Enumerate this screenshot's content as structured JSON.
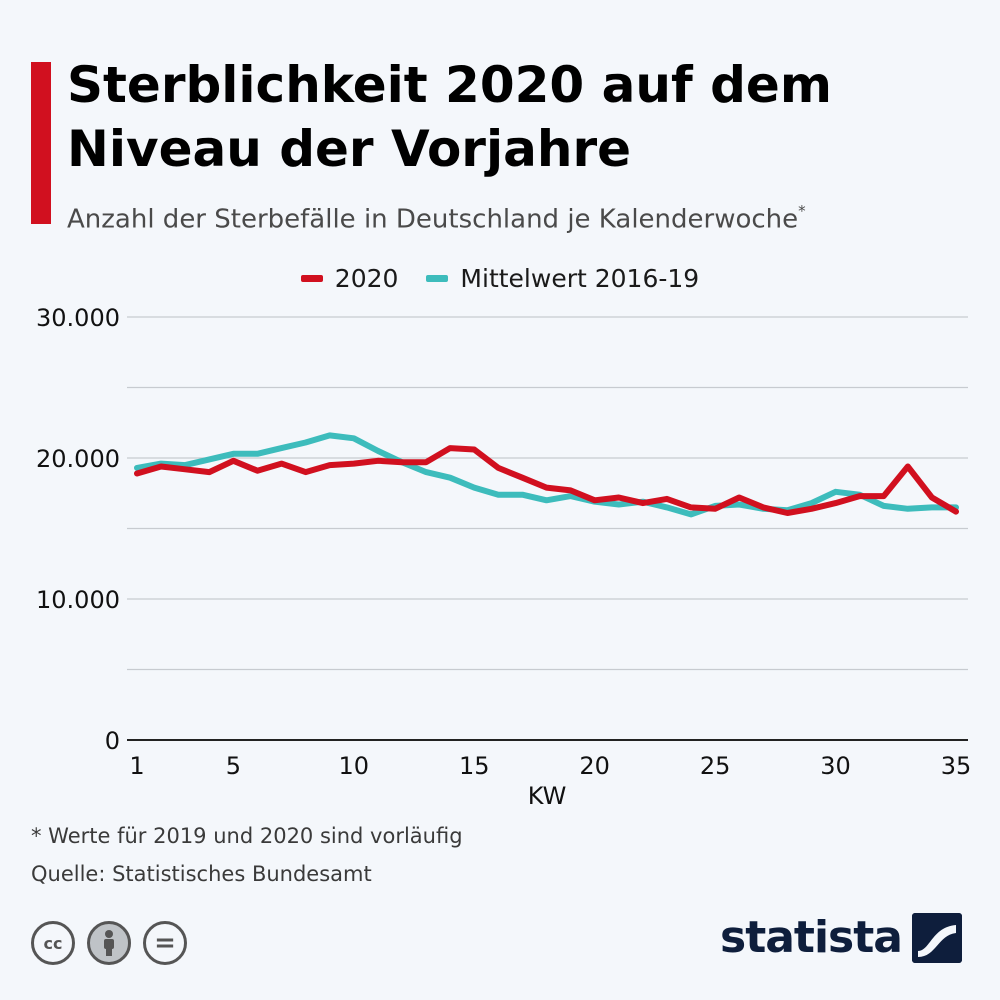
{
  "title": "Sterblichkeit 2020 auf dem Niveau der Vorjahre",
  "subtitle": "Anzahl der Sterbefälle in Deutschland je Kalenderwoche",
  "subtitle_mark": "*",
  "footnote": "* Werte für 2019 und 2020 sind vorläufig",
  "source": "Quelle: Statistisches Bundesamt",
  "brand": "statista",
  "license_icons": [
    "cc-icon",
    "by-person-icon",
    "nd-equals-icon"
  ],
  "license_labels": {
    "cc": "cc",
    "nd": "="
  },
  "colors": {
    "accent": "#d1101f",
    "series_2020": "#d1101f",
    "series_mean": "#3dbcbc",
    "brand": "#0e1e3c"
  },
  "chart_data": {
    "type": "line",
    "title": "Sterblichkeit 2020 auf dem Niveau der Vorjahre",
    "xlabel": "KW",
    "ylabel": "",
    "xlim": [
      1,
      35
    ],
    "ylim": [
      0,
      30000
    ],
    "x_ticks": [
      "1",
      "5",
      "10",
      "15",
      "20",
      "25",
      "30",
      "35"
    ],
    "x_tick_values": [
      1,
      5,
      10,
      15,
      20,
      25,
      30,
      35
    ],
    "y_ticks": [
      "0",
      "10.000",
      "20.000",
      "30.000"
    ],
    "y_tick_values": [
      0,
      10000,
      20000,
      30000
    ],
    "y_gridlines": [
      0,
      5000,
      10000,
      15000,
      20000,
      25000,
      30000
    ],
    "grid": true,
    "legend_position": "top-center",
    "x": [
      1,
      2,
      3,
      4,
      5,
      6,
      7,
      8,
      9,
      10,
      11,
      12,
      13,
      14,
      15,
      16,
      17,
      18,
      19,
      20,
      21,
      22,
      23,
      24,
      25,
      26,
      27,
      28,
      29,
      30,
      31,
      32,
      33,
      34,
      35
    ],
    "series": [
      {
        "name": "2020",
        "color": "#d1101f",
        "values": [
          18900,
          19400,
          19200,
          19000,
          19800,
          19100,
          19600,
          19000,
          19500,
          19600,
          19800,
          19700,
          19700,
          20700,
          20600,
          19300,
          18600,
          17900,
          17700,
          17000,
          17200,
          16800,
          17100,
          16500,
          16400,
          17200,
          16500,
          16100,
          16400,
          16800,
          17300,
          17300,
          19400,
          17200,
          16200
        ]
      },
      {
        "name": "Mittelwert 2016-19",
        "color": "#3dbcbc",
        "values": [
          19300,
          19600,
          19500,
          19900,
          20300,
          20300,
          20700,
          21100,
          21600,
          21400,
          20500,
          19700,
          19000,
          18600,
          17900,
          17400,
          17400,
          17000,
          17300,
          16900,
          16700,
          16900,
          16500,
          16000,
          16600,
          16700,
          16400,
          16300,
          16800,
          17600,
          17400,
          16600,
          16400,
          16500,
          16500
        ]
      }
    ]
  }
}
